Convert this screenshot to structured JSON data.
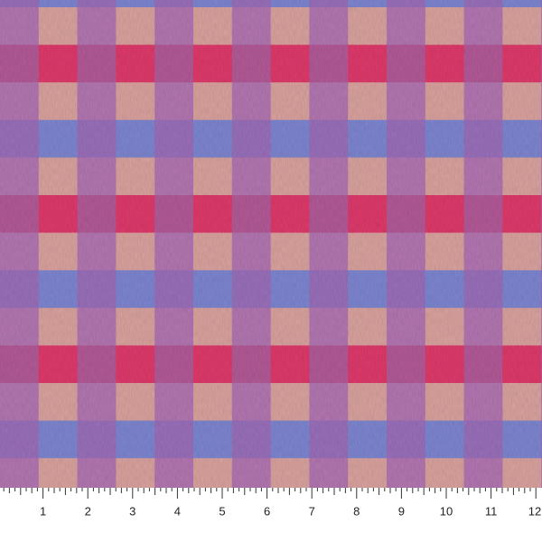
{
  "ruler": {
    "labels": [
      "1",
      "2",
      "3",
      "4",
      "5",
      "6",
      "7",
      "8",
      "9",
      "10",
      "11",
      "12"
    ]
  }
}
